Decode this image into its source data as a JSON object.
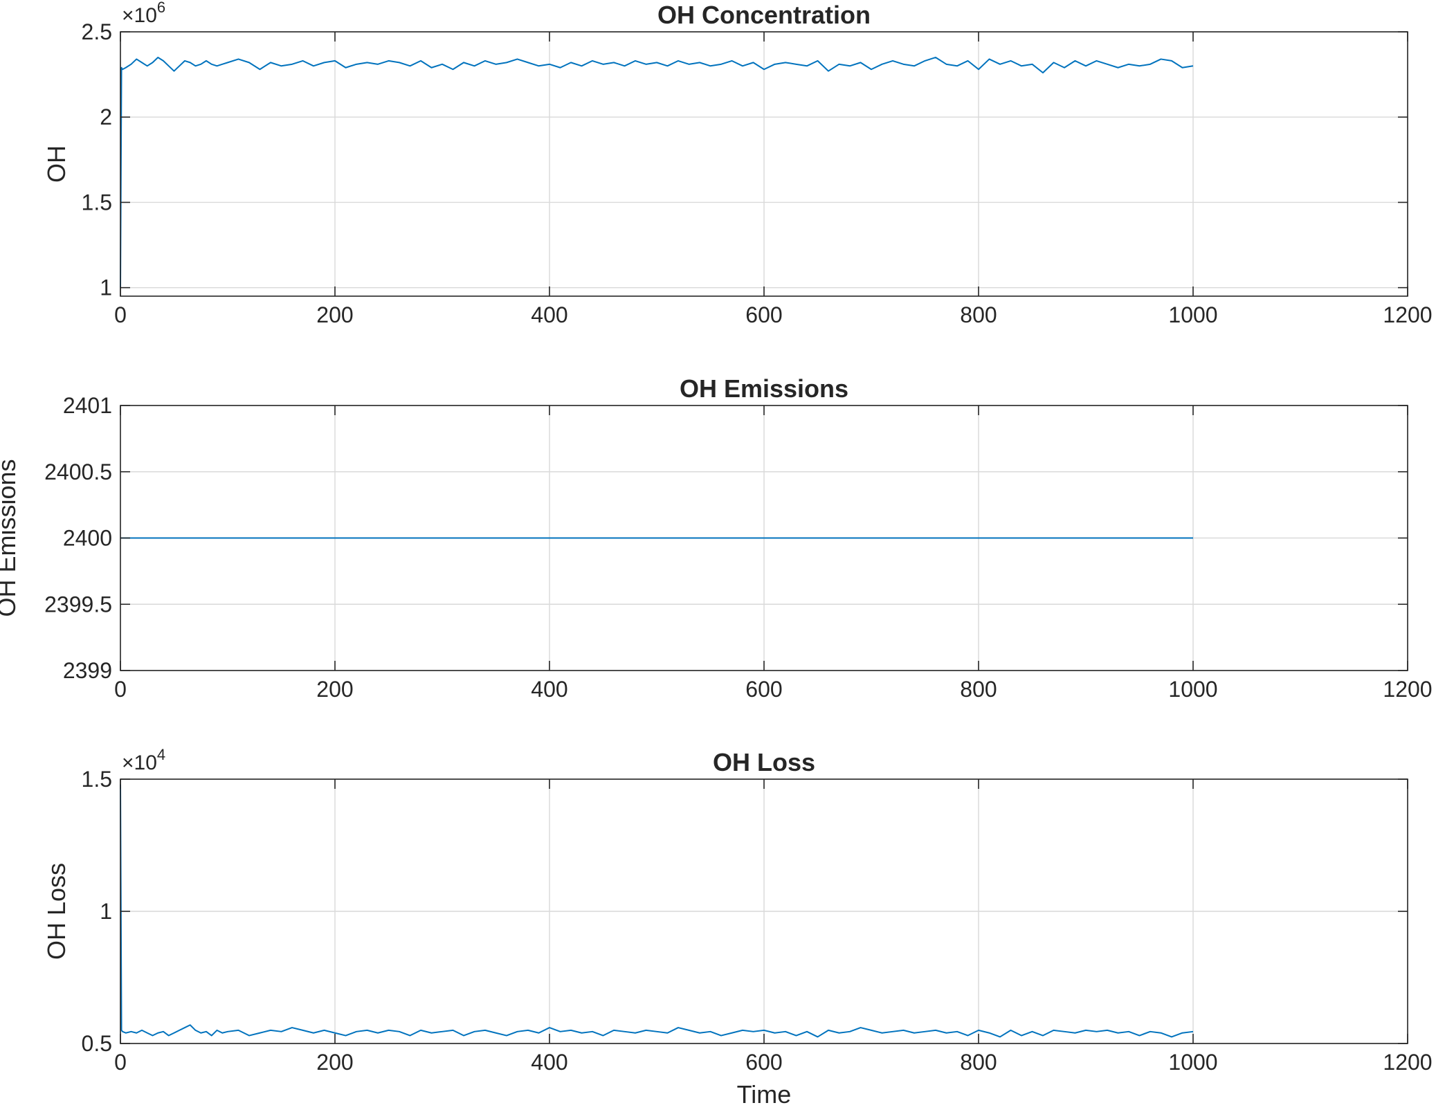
{
  "chart_data": [
    {
      "type": "line",
      "title": "OH Concentration",
      "xlabel": "",
      "ylabel": "OH",
      "xlim": [
        0,
        1200
      ],
      "ylim": [
        0.95,
        2.5
      ],
      "exponent_label": "×10",
      "exponent_power": "6",
      "xticks": [
        0,
        200,
        400,
        600,
        800,
        1000,
        1200
      ],
      "xtick_labels": [
        "0",
        "200",
        "400",
        "600",
        "800",
        "1000",
        "1200"
      ],
      "yticks": [
        1,
        1.5,
        2,
        2.5
      ],
      "ytick_labels": [
        "1",
        "1.5",
        "2",
        "2.5"
      ],
      "grid": true,
      "series": [
        {
          "color": "#0072BD",
          "x": [
            0,
            1,
            2,
            5,
            10,
            15,
            20,
            25,
            30,
            35,
            40,
            45,
            50,
            55,
            60,
            65,
            70,
            75,
            80,
            85,
            90,
            95,
            100,
            110,
            120,
            130,
            140,
            150,
            160,
            170,
            180,
            190,
            200,
            210,
            220,
            230,
            240,
            250,
            260,
            270,
            280,
            290,
            300,
            310,
            320,
            330,
            340,
            350,
            360,
            370,
            380,
            390,
            400,
            410,
            420,
            430,
            440,
            450,
            460,
            470,
            480,
            490,
            500,
            510,
            520,
            530,
            540,
            550,
            560,
            570,
            580,
            590,
            600,
            610,
            620,
            630,
            640,
            650,
            660,
            670,
            680,
            690,
            700,
            710,
            720,
            730,
            740,
            750,
            760,
            770,
            780,
            790,
            800,
            810,
            820,
            830,
            840,
            850,
            860,
            870,
            880,
            890,
            900,
            910,
            920,
            930,
            940,
            950,
            960,
            970,
            980,
            990,
            1000
          ],
          "y": [
            1.0,
            2.29,
            2.28,
            2.29,
            2.31,
            2.34,
            2.32,
            2.3,
            2.32,
            2.35,
            2.33,
            2.3,
            2.27,
            2.3,
            2.33,
            2.32,
            2.3,
            2.31,
            2.33,
            2.31,
            2.3,
            2.31,
            2.32,
            2.34,
            2.32,
            2.28,
            2.32,
            2.3,
            2.31,
            2.33,
            2.3,
            2.32,
            2.33,
            2.29,
            2.31,
            2.32,
            2.31,
            2.33,
            2.32,
            2.3,
            2.33,
            2.29,
            2.31,
            2.28,
            2.32,
            2.3,
            2.33,
            2.31,
            2.32,
            2.34,
            2.32,
            2.3,
            2.31,
            2.29,
            2.32,
            2.3,
            2.33,
            2.31,
            2.32,
            2.3,
            2.33,
            2.31,
            2.32,
            2.3,
            2.33,
            2.31,
            2.32,
            2.3,
            2.31,
            2.33,
            2.3,
            2.32,
            2.28,
            2.31,
            2.32,
            2.31,
            2.3,
            2.33,
            2.27,
            2.31,
            2.3,
            2.32,
            2.28,
            2.31,
            2.33,
            2.31,
            2.3,
            2.33,
            2.35,
            2.31,
            2.3,
            2.33,
            2.28,
            2.34,
            2.31,
            2.33,
            2.3,
            2.31,
            2.26,
            2.32,
            2.29,
            2.33,
            2.3,
            2.33,
            2.31,
            2.29,
            2.31,
            2.3,
            2.31,
            2.34,
            2.33,
            2.29,
            2.3
          ]
        }
      ]
    },
    {
      "type": "line",
      "title": "OH Emissions",
      "xlabel": "",
      "ylabel": "OH Emissions",
      "xlim": [
        0,
        1200
      ],
      "ylim": [
        2399,
        2401
      ],
      "xticks": [
        0,
        200,
        400,
        600,
        800,
        1000,
        1200
      ],
      "xtick_labels": [
        "0",
        "200",
        "400",
        "600",
        "800",
        "1000",
        "1200"
      ],
      "yticks": [
        2399,
        2399.5,
        2400,
        2400.5,
        2401
      ],
      "ytick_labels": [
        "2399",
        "2399.5",
        "2400",
        "2400.5",
        "2401"
      ],
      "grid": true,
      "series": [
        {
          "color": "#0072BD",
          "x": [
            0,
            1000
          ],
          "y": [
            2400,
            2400
          ]
        }
      ]
    },
    {
      "type": "line",
      "title": "OH Loss",
      "xlabel": "Time",
      "ylabel": "OH Loss",
      "xlim": [
        0,
        1200
      ],
      "ylim": [
        0.5,
        1.5
      ],
      "exponent_label": "×10",
      "exponent_power": "4",
      "xticks": [
        0,
        200,
        400,
        600,
        800,
        1000,
        1200
      ],
      "xtick_labels": [
        "0",
        "200",
        "400",
        "600",
        "800",
        "1000",
        "1200"
      ],
      "yticks": [
        0.5,
        1,
        1.5
      ],
      "ytick_labels": [
        "0.5",
        "1",
        "1.5"
      ],
      "grid": true,
      "series": [
        {
          "color": "#0072BD",
          "x": [
            0,
            1,
            2,
            5,
            10,
            15,
            20,
            25,
            30,
            35,
            40,
            45,
            50,
            55,
            60,
            65,
            70,
            75,
            80,
            85,
            90,
            95,
            100,
            110,
            120,
            130,
            140,
            150,
            160,
            170,
            180,
            190,
            200,
            210,
            220,
            230,
            240,
            250,
            260,
            270,
            280,
            290,
            300,
            310,
            320,
            330,
            340,
            350,
            360,
            370,
            380,
            390,
            400,
            410,
            420,
            430,
            440,
            450,
            460,
            470,
            480,
            490,
            500,
            510,
            520,
            530,
            540,
            550,
            560,
            570,
            580,
            590,
            600,
            610,
            620,
            630,
            640,
            650,
            660,
            670,
            680,
            690,
            700,
            710,
            720,
            730,
            740,
            750,
            760,
            770,
            780,
            790,
            800,
            810,
            820,
            830,
            840,
            850,
            860,
            870,
            880,
            890,
            900,
            910,
            920,
            930,
            940,
            950,
            960,
            970,
            980,
            990,
            1000
          ],
          "y": [
            1.48,
            0.55,
            0.545,
            0.54,
            0.545,
            0.54,
            0.55,
            0.54,
            0.53,
            0.54,
            0.545,
            0.53,
            0.54,
            0.55,
            0.56,
            0.57,
            0.55,
            0.54,
            0.545,
            0.53,
            0.55,
            0.54,
            0.545,
            0.55,
            0.53,
            0.54,
            0.55,
            0.545,
            0.56,
            0.55,
            0.54,
            0.55,
            0.54,
            0.53,
            0.545,
            0.55,
            0.54,
            0.55,
            0.545,
            0.53,
            0.55,
            0.54,
            0.545,
            0.55,
            0.53,
            0.545,
            0.55,
            0.54,
            0.53,
            0.545,
            0.55,
            0.54,
            0.56,
            0.545,
            0.55,
            0.54,
            0.545,
            0.53,
            0.55,
            0.545,
            0.54,
            0.55,
            0.545,
            0.54,
            0.56,
            0.55,
            0.54,
            0.545,
            0.53,
            0.54,
            0.55,
            0.545,
            0.55,
            0.54,
            0.545,
            0.53,
            0.545,
            0.525,
            0.55,
            0.54,
            0.545,
            0.56,
            0.55,
            0.54,
            0.545,
            0.55,
            0.54,
            0.545,
            0.55,
            0.54,
            0.545,
            0.53,
            0.55,
            0.54,
            0.525,
            0.55,
            0.53,
            0.545,
            0.53,
            0.55,
            0.545,
            0.54,
            0.55,
            0.545,
            0.55,
            0.54,
            0.545,
            0.53,
            0.545,
            0.54,
            0.525,
            0.54,
            0.545
          ]
        }
      ]
    }
  ]
}
